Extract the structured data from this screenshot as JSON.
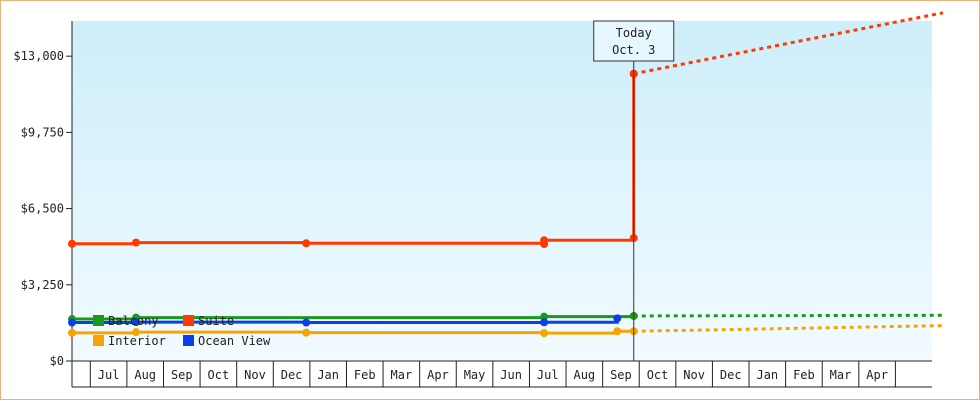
{
  "chart_data": {
    "type": "line",
    "title": "",
    "xlabel": "",
    "ylabel": "",
    "ylim": [
      0,
      14500
    ],
    "yticks": [
      {
        "value": 0,
        "label": "$0"
      },
      {
        "value": 3250,
        "label": "$3,250"
      },
      {
        "value": 6500,
        "label": "$6,500"
      },
      {
        "value": 9750,
        "label": "$9,750"
      },
      {
        "value": 13000,
        "label": "$13,000"
      }
    ],
    "x_range": [
      0,
      23.5
    ],
    "months": [
      "Jul",
      "Aug",
      "Sep",
      "Oct",
      "Nov",
      "Dec",
      "Jan",
      "Feb",
      "Mar",
      "Apr",
      "May",
      "Jun",
      "Jul",
      "Aug",
      "Sep",
      "Oct",
      "Nov",
      "Dec",
      "Jan",
      "Feb",
      "Mar",
      "Apr"
    ],
    "today": {
      "x": 15.35,
      "line1": "Today",
      "line2": "Oct. 3"
    },
    "legend": {
      "placement": "bottom-left",
      "columns": 2
    },
    "series": [
      {
        "name": "Balcony",
        "color": "#1a9a1a",
        "points": [
          [
            0,
            1790
          ],
          [
            1.75,
            1850
          ],
          [
            12.9,
            1890
          ],
          [
            15.35,
            1920
          ]
        ],
        "projection": [
          [
            15.35,
            1920
          ],
          [
            23.8,
            1950
          ]
        ],
        "step": true
      },
      {
        "name": "Suite",
        "color": "#ff3a00",
        "points": [
          [
            0,
            5000
          ],
          [
            1.75,
            5050
          ],
          [
            6.4,
            5020
          ],
          [
            12.9,
            4990
          ],
          [
            12.9,
            5150
          ],
          [
            15.35,
            5250
          ],
          [
            15.35,
            12250
          ],
          [
            15.35,
            12250
          ]
        ],
        "projection": [
          [
            15.35,
            12250
          ],
          [
            23.8,
            14850
          ]
        ],
        "step": true
      },
      {
        "name": "Interior",
        "color": "#f7a400",
        "points": [
          [
            0,
            1200
          ],
          [
            1.75,
            1230
          ],
          [
            6.4,
            1210
          ],
          [
            12.9,
            1190
          ],
          [
            14.9,
            1270
          ],
          [
            15.35,
            1270
          ]
        ],
        "projection": [
          [
            15.35,
            1270
          ],
          [
            17.6,
            1330
          ],
          [
            23.8,
            1510
          ]
        ],
        "step": true
      },
      {
        "name": "Ocean View",
        "color": "#0a3fe8",
        "points": [
          [
            0,
            1640
          ],
          [
            1.75,
            1660
          ],
          [
            6.4,
            1640
          ],
          [
            12.9,
            1650
          ],
          [
            14.9,
            1820
          ]
        ],
        "projection": [],
        "step": true
      }
    ]
  }
}
